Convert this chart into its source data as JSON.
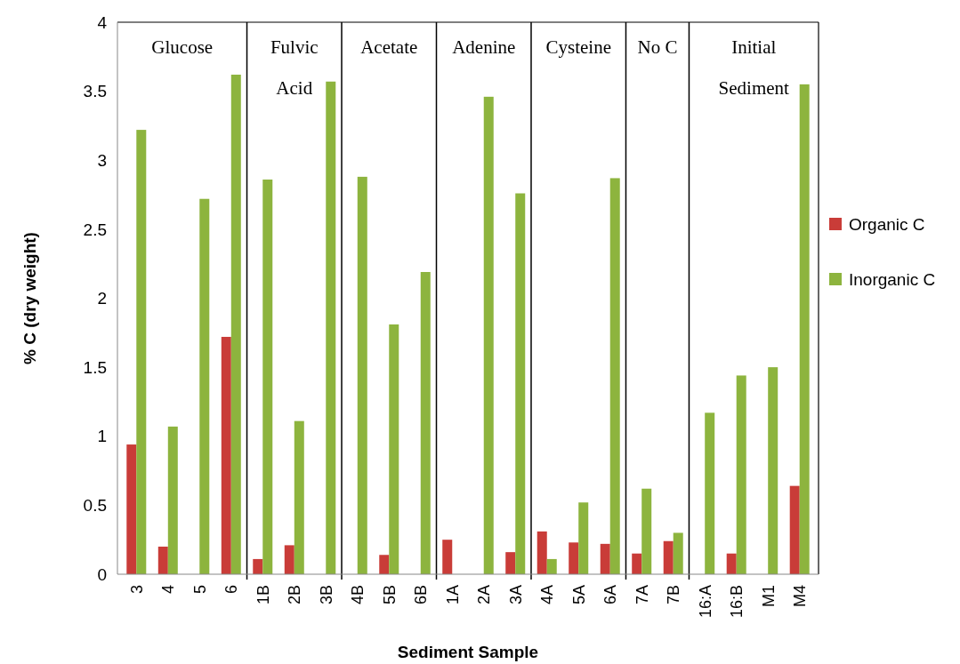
{
  "chart_data": {
    "type": "bar",
    "xlabel": "Sediment Sample",
    "ylabel": "% C (dry weight)",
    "categories": [
      "3",
      "4",
      "5",
      "6",
      "1B",
      "2B",
      "3B",
      "4B",
      "5B",
      "6B",
      "1A",
      "2A",
      "3A",
      "4A",
      "5A",
      "6A",
      "7A",
      "7B",
      "16:A",
      "16:B",
      "M1",
      "M4"
    ],
    "series": [
      {
        "name": "Organic C",
        "color": "#c93c38",
        "values": [
          0.94,
          0.2,
          null,
          1.72,
          0.11,
          0.21,
          null,
          null,
          0.14,
          null,
          0.25,
          null,
          0.16,
          0.31,
          0.23,
          0.22,
          0.15,
          0.24,
          null,
          0.15,
          null,
          0.64
        ]
      },
      {
        "name": "Inorganic C",
        "color": "#8db43e",
        "values": [
          3.22,
          1.07,
          2.72,
          3.62,
          2.86,
          1.11,
          3.57,
          2.88,
          1.81,
          2.19,
          null,
          3.46,
          2.76,
          0.11,
          0.52,
          2.87,
          0.62,
          0.3,
          1.17,
          1.44,
          1.5,
          3.55
        ]
      }
    ],
    "ylim": [
      0,
      4
    ],
    "yticks": [
      0,
      0.5,
      1,
      1.5,
      2,
      2.5,
      3,
      3.5,
      4
    ],
    "grid": false,
    "legend": "right",
    "annotations": [
      "Glucose",
      "Fulvic Acid",
      "Acetate",
      "Adenine",
      "Cysteine",
      "No C",
      "Initial Sediment"
    ]
  }
}
